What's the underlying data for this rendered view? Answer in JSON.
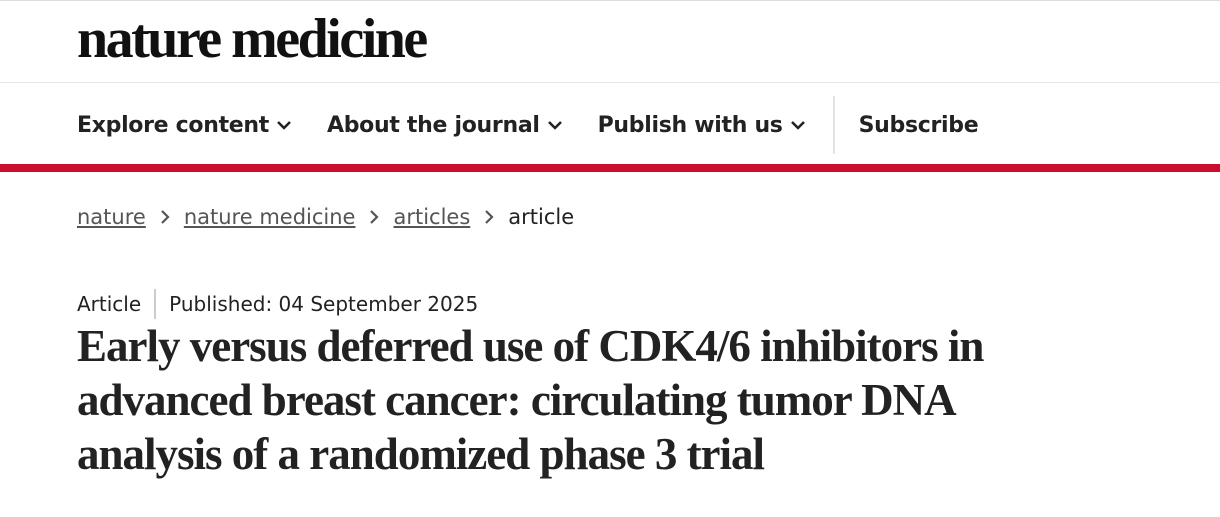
{
  "header": {
    "logo": "nature medicine"
  },
  "nav": {
    "items": [
      "Explore content",
      "About the journal",
      "Publish with us"
    ],
    "subscribe": "Subscribe"
  },
  "breadcrumbs": {
    "links": [
      "nature",
      "nature medicine",
      "articles"
    ],
    "current": "article"
  },
  "article": {
    "type": "Article",
    "published": "Published: 04 September 2025",
    "title": "Early versus deferred use of CDK4/6 inhibitors in advanced breast cancer: circulating tumor DNA analysis of a randomized phase 3 trial"
  }
}
